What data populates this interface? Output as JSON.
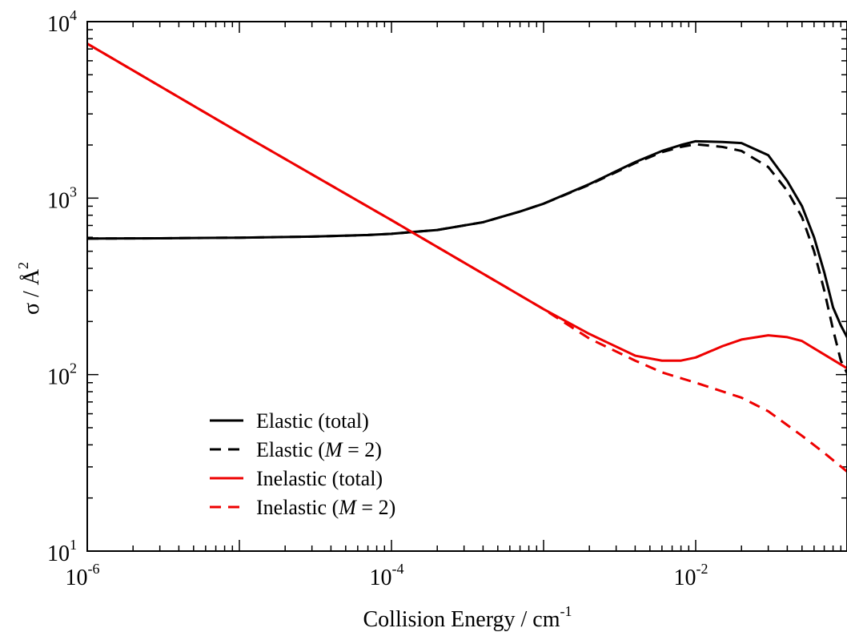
{
  "chart_data": {
    "type": "line",
    "x_scale": "log",
    "y_scale": "log",
    "xlim": [
      1e-06,
      0.1
    ],
    "ylim": [
      10,
      10000
    ],
    "x_ticks": [
      {
        "value": 1e-06,
        "base": "10",
        "exp": "-6"
      },
      {
        "value": 0.0001,
        "base": "10",
        "exp": "-4"
      },
      {
        "value": 0.01,
        "base": "10",
        "exp": "-2"
      }
    ],
    "y_ticks": [
      {
        "value": 10,
        "base": "10",
        "exp": "1"
      },
      {
        "value": 100,
        "base": "10",
        "exp": "2"
      },
      {
        "value": 1000,
        "base": "10",
        "exp": "3"
      },
      {
        "value": 10000,
        "base": "10",
        "exp": "4"
      }
    ],
    "xlabel": {
      "text": "Collision Energy / cm",
      "sup": "-1"
    },
    "ylabel": {
      "text": "σ / Å",
      "sup": "2"
    },
    "legend_position": "lower-left",
    "series": [
      {
        "name": "Elastic (total)",
        "name_parts": [
          "Elastic (total)"
        ],
        "color": "#000000",
        "dash": "solid",
        "points": [
          [
            1e-06,
            590
          ],
          [
            3e-06,
            592
          ],
          [
            1e-05,
            597
          ],
          [
            3e-05,
            605
          ],
          [
            7e-05,
            618
          ],
          [
            0.0001,
            628
          ],
          [
            0.0002,
            660
          ],
          [
            0.0004,
            730
          ],
          [
            0.0007,
            840
          ],
          [
            0.001,
            930
          ],
          [
            0.002,
            1200
          ],
          [
            0.004,
            1600
          ],
          [
            0.006,
            1850
          ],
          [
            0.008,
            2000
          ],
          [
            0.01,
            2100
          ],
          [
            0.015,
            2080
          ],
          [
            0.02,
            2050
          ],
          [
            0.03,
            1750
          ],
          [
            0.04,
            1250
          ],
          [
            0.05,
            900
          ],
          [
            0.06,
            600
          ],
          [
            0.07,
            380
          ],
          [
            0.08,
            240
          ],
          [
            0.09,
            190
          ],
          [
            0.1,
            160
          ]
        ]
      },
      {
        "name": "Elastic (M = 2)",
        "name_parts": [
          "Elastic (",
          "M",
          " = 2)"
        ],
        "color": "#000000",
        "dash": "dashed",
        "points": [
          [
            1e-06,
            590
          ],
          [
            3e-06,
            592
          ],
          [
            1e-05,
            597
          ],
          [
            3e-05,
            605
          ],
          [
            7e-05,
            618
          ],
          [
            0.0001,
            628
          ],
          [
            0.0002,
            660
          ],
          [
            0.0004,
            730
          ],
          [
            0.0007,
            840
          ],
          [
            0.001,
            930
          ],
          [
            0.002,
            1190
          ],
          [
            0.004,
            1580
          ],
          [
            0.006,
            1820
          ],
          [
            0.008,
            1950
          ],
          [
            0.01,
            2020
          ],
          [
            0.015,
            1950
          ],
          [
            0.02,
            1850
          ],
          [
            0.03,
            1500
          ],
          [
            0.04,
            1100
          ],
          [
            0.05,
            780
          ],
          [
            0.06,
            500
          ],
          [
            0.07,
            300
          ],
          [
            0.08,
            180
          ],
          [
            0.09,
            120
          ],
          [
            0.1,
            100
          ]
        ]
      },
      {
        "name": "Inelastic (total)",
        "name_parts": [
          "Inelastic (total)"
        ],
        "color": "#ee0000",
        "dash": "solid",
        "points": [
          [
            1e-06,
            7500
          ],
          [
            1e-05,
            2350
          ],
          [
            0.0001,
            750
          ],
          [
            0.001,
            235
          ],
          [
            0.002,
            170
          ],
          [
            0.004,
            128
          ],
          [
            0.006,
            120
          ],
          [
            0.008,
            120
          ],
          [
            0.01,
            125
          ],
          [
            0.015,
            145
          ],
          [
            0.02,
            158
          ],
          [
            0.03,
            167
          ],
          [
            0.04,
            163
          ],
          [
            0.05,
            155
          ],
          [
            0.07,
            130
          ],
          [
            0.1,
            108
          ]
        ]
      },
      {
        "name": "Inelastic (M = 2)",
        "name_parts": [
          "Inelastic (",
          "M",
          " = 2)"
        ],
        "color": "#ee0000",
        "dash": "dashed",
        "points": [
          [
            1e-06,
            7500
          ],
          [
            1e-05,
            2350
          ],
          [
            0.0001,
            750
          ],
          [
            0.001,
            235
          ],
          [
            0.002,
            160
          ],
          [
            0.004,
            120
          ],
          [
            0.006,
            103
          ],
          [
            0.01,
            90
          ],
          [
            0.02,
            74
          ],
          [
            0.03,
            62
          ],
          [
            0.05,
            45
          ],
          [
            0.07,
            36
          ],
          [
            0.1,
            28
          ]
        ]
      }
    ]
  }
}
